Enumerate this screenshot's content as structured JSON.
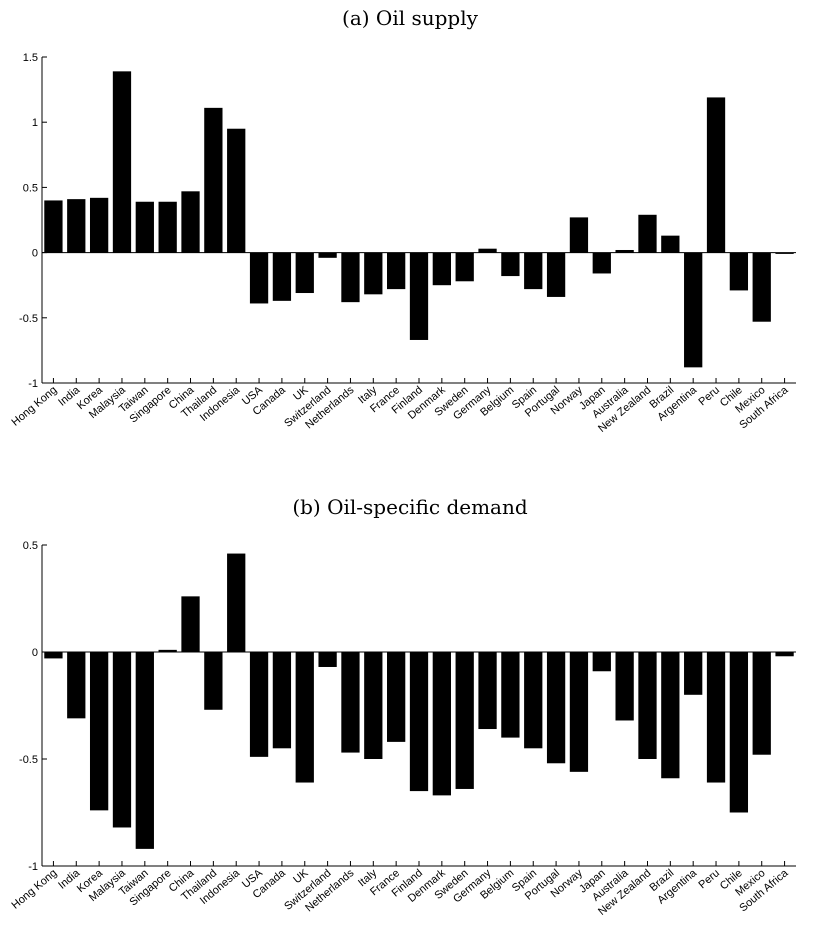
{
  "chart_data": [
    {
      "type": "bar",
      "title": "(a) Oil supply",
      "xlabel": "",
      "ylabel": "",
      "ylim": [
        -1,
        1.5
      ],
      "yticks": [
        "1.5",
        "1",
        "0.5",
        "0",
        "-0.5",
        "-1"
      ],
      "ytick_values": [
        1.5,
        1,
        0.5,
        0,
        -0.5,
        -1
      ],
      "categories": [
        "Hong Kong",
        "India",
        "Korea",
        "Malaysia",
        "Taiwan",
        "Singapore",
        "China",
        "Thailand",
        "Indonesia",
        "USA",
        "Canada",
        "UK",
        "Switzerland",
        "Netherlands",
        "Italy",
        "France",
        "Finland",
        "Denmark",
        "Sweden",
        "Germany",
        "Belgium",
        "Spain",
        "Portugal",
        "Norway",
        "Japan",
        "Australia",
        "New Zealand",
        "Brazil",
        "Argentina",
        "Peru",
        "Chile",
        "Mexico",
        "South Africa"
      ],
      "values": [
        0.4,
        0.41,
        0.42,
        1.39,
        0.39,
        0.39,
        0.47,
        1.11,
        0.95,
        -0.39,
        -0.37,
        -0.31,
        -0.04,
        -0.38,
        -0.32,
        -0.28,
        -0.67,
        -0.25,
        -0.22,
        0.03,
        -0.18,
        -0.28,
        -0.34,
        0.27,
        -0.16,
        0.02,
        0.29,
        0.13,
        -0.88,
        1.19,
        -0.29,
        -0.53,
        -0.01
      ],
      "bar_color": "#000000",
      "grid": false
    },
    {
      "type": "bar",
      "title": "(b) Oil-specific demand",
      "xlabel": "",
      "ylabel": "",
      "ylim": [
        -1,
        0.5
      ],
      "yticks": [
        "0.5",
        "0",
        "-0.5",
        "-1"
      ],
      "ytick_values": [
        0.5,
        0,
        -0.5,
        -1
      ],
      "categories": [
        "Hong Kong",
        "India",
        "Korea",
        "Malaysia",
        "Taiwan",
        "Singapore",
        "China",
        "Thailand",
        "Indonesia",
        "USA",
        "Canada",
        "UK",
        "Switzerland",
        "Netherlands",
        "Italy",
        "France",
        "Finland",
        "Denmark",
        "Sweden",
        "Germany",
        "Belgium",
        "Spain",
        "Portugal",
        "Norway",
        "Japan",
        "Australia",
        "New Zealand",
        "Brazil",
        "Argentina",
        "Peru",
        "Chile",
        "Mexico",
        "South Africa"
      ],
      "values": [
        -0.03,
        -0.31,
        -0.74,
        -0.82,
        -0.92,
        0.01,
        0.26,
        -0.27,
        0.46,
        -0.49,
        -0.45,
        -0.61,
        -0.07,
        -0.47,
        -0.5,
        -0.42,
        -0.65,
        -0.67,
        -0.64,
        -0.36,
        -0.4,
        -0.45,
        -0.52,
        -0.56,
        -0.09,
        -0.32,
        -0.5,
        -0.59,
        -0.2,
        -0.61,
        -0.75,
        -0.48,
        -0.02
      ],
      "bar_color": "#000000",
      "grid": false
    }
  ]
}
